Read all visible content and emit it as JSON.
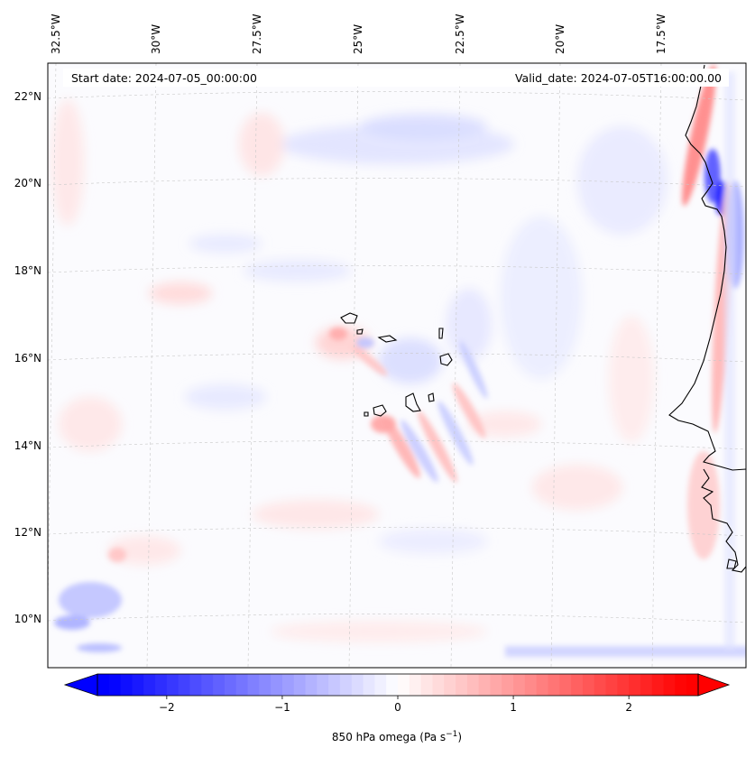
{
  "header": {
    "start_date": "Start date: 2024-07-05_00:00:00",
    "valid_date": "Valid_date: 2024-07-05T16:00:00.00"
  },
  "longitude_labels": [
    "32.5°W",
    "30°W",
    "27.5°W",
    "25°W",
    "22.5°W",
    "20°W",
    "17.5°W"
  ],
  "latitude_labels": [
    "22°N",
    "20°N",
    "18°N",
    "16°N",
    "14°N",
    "12°N",
    "10°N"
  ],
  "colorbar": {
    "tick_labels": [
      "−2",
      "−1",
      "0",
      "1",
      "2"
    ],
    "ticks": [
      -2,
      -1,
      0,
      1,
      2
    ],
    "range": [
      -2.6,
      2.6
    ],
    "label_text": "850 hPa omega (Pa s",
    "label_exp": "−1",
    "label_close": ")"
  },
  "colors": {
    "negative": "#0000ff",
    "zero": "#ffffff",
    "positive": "#ff0000",
    "coastline": "#000000",
    "gridline": "#c8c8c8"
  }
}
